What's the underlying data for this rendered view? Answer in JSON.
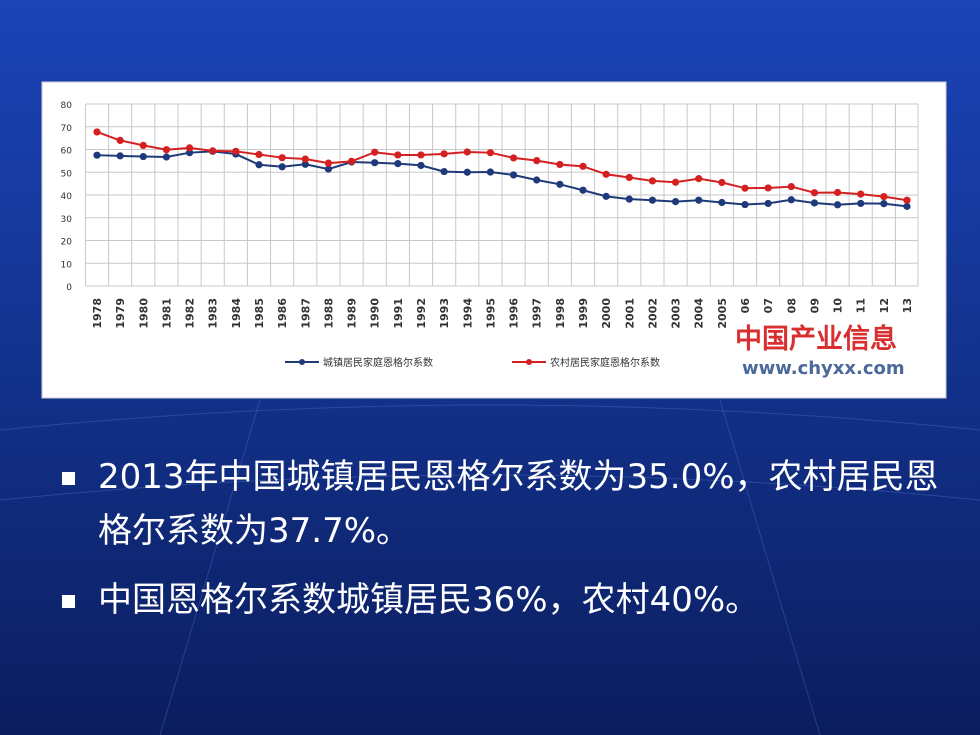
{
  "chart_data": {
    "type": "line",
    "categories": [
      "1978",
      "1979",
      "1980",
      "1981",
      "1982",
      "1983",
      "1984",
      "1985",
      "1986",
      "1987",
      "1988",
      "1989",
      "1990",
      "1991",
      "1992",
      "1993",
      "1994",
      "1995",
      "1996",
      "1997",
      "1998",
      "1999",
      "2000",
      "2001",
      "2002",
      "2003",
      "2004",
      "2005",
      "06",
      "07",
      "08",
      "09",
      "10",
      "11",
      "12",
      "13"
    ],
    "series": [
      {
        "name": "城镇居民家庭恩格尔系数",
        "color": "#1f3a7a",
        "values": [
          57.5,
          57.2,
          56.9,
          56.7,
          58.6,
          59.2,
          58.0,
          53.3,
          52.4,
          53.5,
          51.4,
          54.5,
          54.2,
          53.8,
          53.0,
          50.3,
          50.0,
          50.1,
          48.8,
          46.6,
          44.7,
          42.1,
          39.4,
          38.2,
          37.7,
          37.1,
          37.7,
          36.7,
          35.8,
          36.3,
          37.9,
          36.5,
          35.7,
          36.3,
          36.2,
          35.0
        ]
      },
      {
        "name": "农村居民家庭恩格尔系数",
        "color": "#d42020",
        "values": [
          67.7,
          64.0,
          61.8,
          59.9,
          60.7,
          59.4,
          59.2,
          57.8,
          56.4,
          55.8,
          54.0,
          54.8,
          58.8,
          57.6,
          57.6,
          58.1,
          58.9,
          58.6,
          56.3,
          55.1,
          53.4,
          52.6,
          49.1,
          47.7,
          46.2,
          45.6,
          47.2,
          45.5,
          43.0,
          43.1,
          43.7,
          41.0,
          41.1,
          40.4,
          39.3,
          37.7
        ]
      }
    ],
    "ylim": [
      0,
      80
    ],
    "yticks": [
      0,
      10,
      20,
      30,
      40,
      50,
      60,
      70,
      80
    ],
    "grid": true,
    "watermark": "中国产业信息",
    "source": "www.chyxx.com"
  },
  "slide": {
    "bullets": [
      "2013年中国城镇居民恩格尔系数为35.0%，农村居民恩格尔系数为37.7%。",
      "中国恩格尔系数城镇居民36%，农村40%。"
    ]
  }
}
